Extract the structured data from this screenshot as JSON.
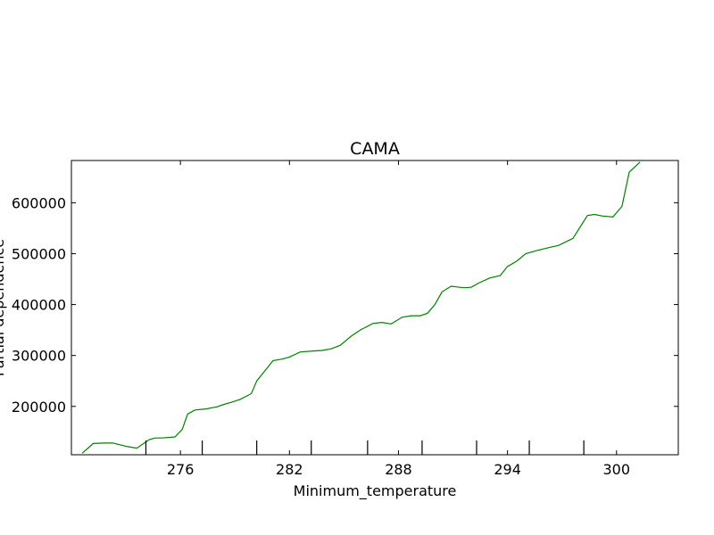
{
  "chart_data": {
    "type": "line",
    "title": "CAMA",
    "xlabel": "Minimum_temperature",
    "ylabel": "Partial dependence",
    "xlim": [
      270.0,
      303.4
    ],
    "ylim": [
      105000,
      683000
    ],
    "x_ticks": [
      276,
      282,
      288,
      294,
      300
    ],
    "y_ticks": [
      200000,
      300000,
      400000,
      500000,
      600000
    ],
    "x_tick_labels": [
      "276",
      "282",
      "288",
      "294",
      "300"
    ],
    "y_tick_labels": [
      "200000",
      "300000",
      "400000",
      "500000",
      "600000"
    ],
    "rug_x": [
      274.1,
      277.2,
      280.2,
      283.2,
      286.3,
      289.3,
      292.3,
      295.2,
      298.2
    ],
    "grid": false,
    "series": [
      {
        "color": "#008000",
        "x": [
          270.6,
          271.2,
          271.8,
          272.3,
          273.1,
          273.6,
          274.3,
          274.6,
          275.0,
          275.7,
          276.1,
          276.4,
          276.8,
          277.4,
          278.0,
          278.4,
          278.9,
          279.3,
          279.9,
          280.2,
          281.1,
          281.6,
          282.0,
          282.6,
          283.4,
          283.8,
          284.3,
          284.8,
          285.4,
          285.9,
          286.6,
          287.1,
          287.6,
          288.2,
          288.7,
          289.2,
          289.6,
          290.0,
          290.4,
          290.9,
          291.6,
          292.0,
          292.4,
          293.0,
          293.6,
          294.0,
          294.5,
          295.0,
          295.6,
          296.3,
          296.8,
          297.2,
          297.6,
          298.4,
          298.8,
          299.2,
          299.8,
          300.3,
          300.7,
          301.3
        ],
        "values": [
          108000,
          127000,
          128000,
          128000,
          121000,
          118000,
          135000,
          138000,
          138000,
          140000,
          155000,
          185000,
          193000,
          195000,
          199000,
          204000,
          209000,
          214000,
          225000,
          250000,
          290000,
          293000,
          297000,
          307000,
          309000,
          310000,
          313000,
          320000,
          338000,
          350000,
          363000,
          365000,
          362000,
          375000,
          378000,
          378000,
          383000,
          400000,
          425000,
          436000,
          433000,
          434000,
          442000,
          452000,
          457000,
          475000,
          485000,
          500000,
          506000,
          512000,
          516000,
          523000,
          530000,
          575000,
          577000,
          574000,
          572000,
          593000,
          660000,
          680000
        ]
      }
    ]
  }
}
